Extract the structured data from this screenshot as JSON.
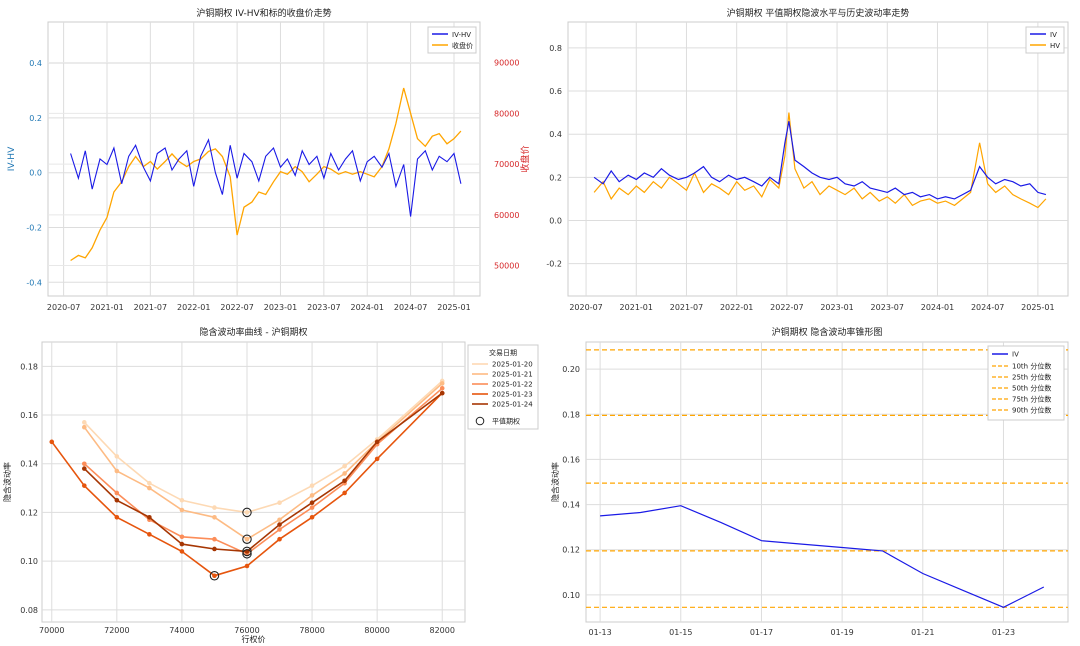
{
  "chart_data": [
    {
      "type": "line",
      "title": "沪铜期权 IV-HV和标的收盘价走势",
      "xlabel": "",
      "ylabel": "IV-HV",
      "y2label": "收盘价",
      "legend": [
        "IV-HV",
        "收盘价"
      ],
      "x_ticks": [
        "2020-07",
        "2021-01",
        "2021-07",
        "2022-01",
        "2022-07",
        "2023-01",
        "2023-07",
        "2024-01",
        "2024-07",
        "2025-01"
      ],
      "ylim": [
        -0.45,
        0.55
      ],
      "y_ticks": [
        "-0.4",
        "-0.2",
        "0.0",
        "0.2",
        "0.4"
      ],
      "y2lim": [
        44000,
        98000
      ],
      "y2_ticks": [
        "50000",
        "60000",
        "70000",
        "80000",
        "90000"
      ],
      "series": [
        {
          "name": "IV-HV",
          "color": "#1a1ae6",
          "x": [
            2020.58,
            2020.67,
            2020.75,
            2020.83,
            2020.92,
            2021.0,
            2021.08,
            2021.17,
            2021.25,
            2021.33,
            2021.42,
            2021.5,
            2021.58,
            2021.67,
            2021.75,
            2021.83,
            2021.92,
            2022.0,
            2022.08,
            2022.17,
            2022.25,
            2022.33,
            2022.42,
            2022.5,
            2022.58,
            2022.67,
            2022.75,
            2022.83,
            2022.92,
            2023.0,
            2023.08,
            2023.17,
            2023.25,
            2023.33,
            2023.42,
            2023.5,
            2023.58,
            2023.67,
            2023.75,
            2023.83,
            2023.92,
            2024.0,
            2024.08,
            2024.17,
            2024.25,
            2024.33,
            2024.42,
            2024.5,
            2024.58,
            2024.67,
            2024.75,
            2024.83,
            2024.92,
            2025.0,
            2025.08
          ],
          "values": [
            0.07,
            -0.02,
            0.08,
            -0.06,
            0.05,
            0.03,
            0.09,
            -0.04,
            0.06,
            0.1,
            0.02,
            -0.03,
            0.07,
            0.09,
            0.01,
            0.05,
            0.08,
            -0.05,
            0.06,
            0.12,
            0.0,
            -0.08,
            0.1,
            -0.02,
            0.07,
            0.04,
            -0.03,
            0.06,
            0.09,
            0.02,
            0.05,
            -0.01,
            0.08,
            0.03,
            0.06,
            -0.02,
            0.07,
            0.01,
            0.05,
            0.08,
            -0.03,
            0.04,
            0.06,
            0.02,
            0.07,
            -0.05,
            0.03,
            -0.16,
            0.05,
            0.08,
            0.01,
            0.06,
            0.04,
            0.07,
            -0.04
          ]
        },
        {
          "name": "收盘价",
          "color": "#ffa500",
          "x": [
            2020.58,
            2020.67,
            2020.75,
            2020.83,
            2020.92,
            2021.0,
            2021.08,
            2021.17,
            2021.25,
            2021.33,
            2021.42,
            2021.5,
            2021.58,
            2021.67,
            2021.75,
            2021.83,
            2021.92,
            2022.0,
            2022.08,
            2022.17,
            2022.25,
            2022.33,
            2022.42,
            2022.5,
            2022.58,
            2022.67,
            2022.75,
            2022.83,
            2022.92,
            2023.0,
            2023.08,
            2023.17,
            2023.25,
            2023.33,
            2023.42,
            2023.5,
            2023.58,
            2023.67,
            2023.75,
            2023.83,
            2023.92,
            2024.0,
            2024.08,
            2024.17,
            2024.25,
            2024.33,
            2024.42,
            2024.5,
            2024.58,
            2024.67,
            2024.75,
            2024.83,
            2024.92,
            2025.0,
            2025.08
          ],
          "values": [
            51000,
            52000,
            51500,
            53500,
            57000,
            59500,
            64500,
            66500,
            69500,
            71500,
            69500,
            70500,
            69000,
            70500,
            72000,
            70500,
            69500,
            70500,
            71000,
            72500,
            73000,
            71500,
            67500,
            56000,
            61500,
            62500,
            64500,
            64000,
            66500,
            68500,
            68000,
            69500,
            68500,
            66500,
            68000,
            69500,
            69000,
            68000,
            68500,
            68000,
            68500,
            68000,
            67500,
            69500,
            73000,
            78000,
            85000,
            80000,
            75000,
            73500,
            75500,
            76000,
            74000,
            75000,
            76500
          ]
        }
      ]
    },
    {
      "type": "line",
      "title": "沪铜期权 平值期权隐波水平与历史波动率走势",
      "xlabel": "",
      "ylabel": "",
      "legend": [
        "IV",
        "HV"
      ],
      "x_ticks": [
        "2020-07",
        "2021-01",
        "2021-07",
        "2022-01",
        "2022-07",
        "2023-01",
        "2023-07",
        "2024-01",
        "2024-07",
        "2025-01"
      ],
      "ylim": [
        -0.35,
        0.92
      ],
      "y_ticks": [
        "-0.2",
        "0.0",
        "0.2",
        "0.4",
        "0.6",
        "0.8"
      ],
      "series": [
        {
          "name": "IV",
          "color": "#1a1ae6",
          "x": [
            2020.58,
            2020.67,
            2020.75,
            2020.83,
            2020.92,
            2021.0,
            2021.08,
            2021.17,
            2021.25,
            2021.33,
            2021.42,
            2021.5,
            2021.58,
            2021.67,
            2021.75,
            2021.83,
            2021.92,
            2022.0,
            2022.08,
            2022.17,
            2022.25,
            2022.33,
            2022.42,
            2022.48,
            2022.52,
            2022.58,
            2022.67,
            2022.75,
            2022.83,
            2022.92,
            2023.0,
            2023.08,
            2023.17,
            2023.25,
            2023.33,
            2023.42,
            2023.5,
            2023.58,
            2023.67,
            2023.75,
            2023.83,
            2023.92,
            2024.0,
            2024.08,
            2024.17,
            2024.25,
            2024.33,
            2024.42,
            2024.5,
            2024.58,
            2024.67,
            2024.75,
            2024.83,
            2024.92,
            2025.0,
            2025.08
          ],
          "values": [
            0.2,
            0.17,
            0.23,
            0.18,
            0.21,
            0.19,
            0.22,
            0.2,
            0.24,
            0.21,
            0.19,
            0.2,
            0.22,
            0.25,
            0.2,
            0.18,
            0.21,
            0.19,
            0.2,
            0.18,
            0.16,
            0.2,
            0.17,
            0.36,
            0.46,
            0.28,
            0.25,
            0.22,
            0.2,
            0.19,
            0.2,
            0.17,
            0.16,
            0.18,
            0.15,
            0.14,
            0.13,
            0.15,
            0.12,
            0.13,
            0.11,
            0.12,
            0.1,
            0.11,
            0.1,
            0.12,
            0.14,
            0.25,
            0.2,
            0.17,
            0.19,
            0.18,
            0.16,
            0.17,
            0.13,
            0.12
          ]
        },
        {
          "name": "HV",
          "color": "#ffa500",
          "x": [
            2020.58,
            2020.67,
            2020.75,
            2020.83,
            2020.92,
            2021.0,
            2021.08,
            2021.17,
            2021.25,
            2021.33,
            2021.42,
            2021.5,
            2021.58,
            2021.67,
            2021.75,
            2021.83,
            2021.92,
            2022.0,
            2022.08,
            2022.17,
            2022.25,
            2022.33,
            2022.42,
            2022.48,
            2022.52,
            2022.58,
            2022.67,
            2022.75,
            2022.83,
            2022.92,
            2023.0,
            2023.08,
            2023.17,
            2023.25,
            2023.33,
            2023.42,
            2023.5,
            2023.58,
            2023.67,
            2023.75,
            2023.83,
            2023.92,
            2024.0,
            2024.08,
            2024.17,
            2024.25,
            2024.33,
            2024.42,
            2024.5,
            2024.58,
            2024.67,
            2024.75,
            2024.83,
            2024.92,
            2025.0,
            2025.08
          ],
          "values": [
            0.13,
            0.18,
            0.1,
            0.15,
            0.12,
            0.16,
            0.13,
            0.18,
            0.15,
            0.2,
            0.17,
            0.14,
            0.22,
            0.13,
            0.17,
            0.15,
            0.12,
            0.18,
            0.14,
            0.16,
            0.11,
            0.19,
            0.15,
            0.3,
            0.5,
            0.24,
            0.15,
            0.18,
            0.12,
            0.16,
            0.14,
            0.12,
            0.15,
            0.1,
            0.13,
            0.09,
            0.11,
            0.08,
            0.12,
            0.07,
            0.09,
            0.1,
            0.08,
            0.09,
            0.07,
            0.1,
            0.13,
            0.36,
            0.17,
            0.13,
            0.16,
            0.12,
            0.1,
            0.08,
            0.06,
            0.1
          ]
        }
      ]
    },
    {
      "type": "line",
      "title": "隐含波动率曲线 - 沪铜期权",
      "xlabel": "行权价",
      "ylabel": "隐含波动率",
      "xlim": [
        69700,
        82700
      ],
      "x_ticks": [
        70000,
        72000,
        74000,
        76000,
        78000,
        80000,
        82000
      ],
      "ylim": [
        0.075,
        0.19
      ],
      "y_ticks": [
        "0.08",
        "0.10",
        "0.12",
        "0.14",
        "0.16",
        "0.18"
      ],
      "legend_title": "交易日期",
      "atm_label": "平值期权",
      "strikes": [
        70000,
        71000,
        72000,
        73000,
        74000,
        75000,
        76000,
        77000,
        78000,
        79000,
        80000,
        82000
      ],
      "series": [
        {
          "name": "2025-01-20",
          "color": "#fdd9b4",
          "values": [
            null,
            0.157,
            0.143,
            0.132,
            0.125,
            0.122,
            0.12,
            0.124,
            0.131,
            0.139,
            0.15,
            0.174
          ]
        },
        {
          "name": "2025-01-21",
          "color": "#fdbb84",
          "values": [
            null,
            0.155,
            0.137,
            0.13,
            0.121,
            0.118,
            0.109,
            0.117,
            0.127,
            0.136,
            0.149,
            0.173
          ]
        },
        {
          "name": "2025-01-22",
          "color": "#fc8d59",
          "values": [
            null,
            0.14,
            0.128,
            0.117,
            0.11,
            0.109,
            0.103,
            0.113,
            0.122,
            0.132,
            0.148,
            0.171
          ]
        },
        {
          "name": "2025-01-23",
          "color": "#e6550d",
          "values": [
            0.149,
            0.131,
            0.118,
            0.111,
            0.104,
            0.094,
            0.098,
            0.109,
            0.118,
            0.128,
            0.142,
            0.169
          ]
        },
        {
          "name": "2025-01-24",
          "color": "#a63603",
          "values": [
            null,
            0.138,
            0.125,
            0.118,
            0.107,
            0.105,
            0.104,
            0.115,
            0.124,
            0.133,
            0.149,
            0.169
          ]
        }
      ],
      "atm_points": [
        {
          "x": 76000,
          "y": 0.12
        },
        {
          "x": 76000,
          "y": 0.109
        },
        {
          "x": 76000,
          "y": 0.103
        },
        {
          "x": 75000,
          "y": 0.094
        },
        {
          "x": 76000,
          "y": 0.104
        }
      ]
    },
    {
      "type": "line",
      "title": "沪铜期权 隐含波动率锥形图",
      "xlabel": "",
      "ylabel": "隐含波动率",
      "xlim": [
        -0.35,
        11.6
      ],
      "x_ticks": [
        {
          "pos": 0,
          "label": "01-13"
        },
        {
          "pos": 2,
          "label": "01-15"
        },
        {
          "pos": 4,
          "label": "01-17"
        },
        {
          "pos": 6,
          "label": "01-19"
        },
        {
          "pos": 8,
          "label": "01-21"
        },
        {
          "pos": 10,
          "label": "01-23"
        }
      ],
      "ylim": [
        0.088,
        0.212
      ],
      "y_ticks": [
        "0.10",
        "0.12",
        "0.14",
        "0.16",
        "0.18",
        "0.20"
      ],
      "series": [
        {
          "name": "IV",
          "color": "#1a1ae6",
          "x": [
            0,
            1,
            2,
            3,
            4,
            5,
            6,
            7,
            8,
            9,
            10,
            11
          ],
          "values": [
            0.135,
            0.1365,
            0.1395,
            0.132,
            0.124,
            0.1225,
            0.121,
            0.1195,
            0.1095,
            0.102,
            0.0945,
            0.1035
          ]
        }
      ],
      "percentiles": [
        {
          "name": "10th 分位数",
          "value": 0.0945
        },
        {
          "name": "25th 分位数",
          "value": 0.1195
        },
        {
          "name": "50th 分位数",
          "value": 0.1495
        },
        {
          "name": "75th 分位数",
          "value": 0.1795
        },
        {
          "name": "90th 分位数",
          "value": 0.2085
        }
      ],
      "percentile_color": "#ffa500"
    }
  ]
}
